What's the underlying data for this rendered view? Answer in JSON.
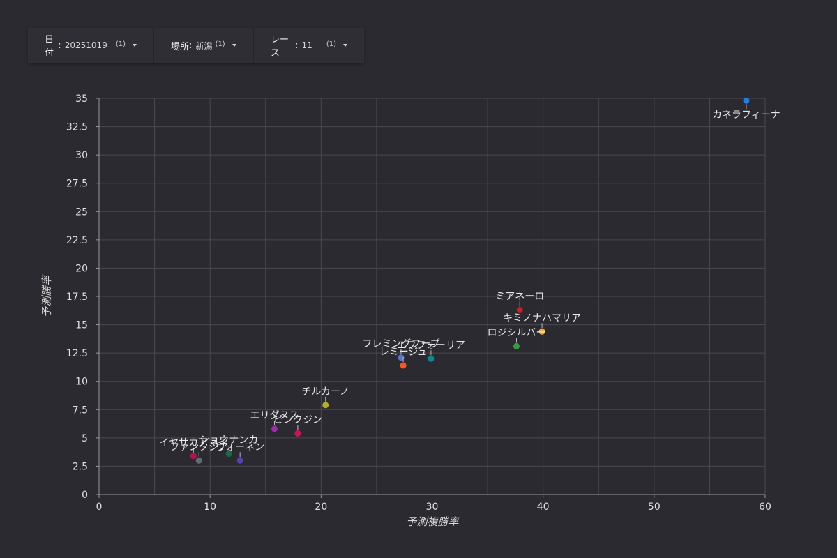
{
  "filters": [
    {
      "label": "日付",
      "value": "20251019",
      "count": "(1)"
    },
    {
      "label": "場所",
      "value": "新潟",
      "count": "(1)"
    },
    {
      "label": "レース",
      "value": "11",
      "count": "(1)"
    }
  ],
  "chart_data": {
    "type": "scatter",
    "title": "",
    "xlabel": "予測複勝率",
    "ylabel": "予測勝率",
    "xlim": [
      0,
      60
    ],
    "ylim": [
      0,
      35
    ],
    "xticks": [
      0,
      10,
      20,
      30,
      40,
      50,
      60
    ],
    "yticks": [
      0,
      2.5,
      5,
      7.5,
      10,
      12.5,
      15,
      17.5,
      20,
      22.5,
      25,
      27.5,
      30,
      32.5,
      35
    ],
    "grid": true,
    "points": [
      {
        "label": "カネラフィーナ",
        "x": 58.3,
        "y": 34.8,
        "color": "#1e7fe0",
        "label_pos": "below"
      },
      {
        "label": "ミアネーロ",
        "x": 37.9,
        "y": 16.3,
        "color": "#c92127",
        "label_pos": "above"
      },
      {
        "label": "キミノナハマリア",
        "x": 39.9,
        "y": 14.4,
        "color": "#f2a82a",
        "label_pos": "above"
      },
      {
        "label": "ロジシルバー",
        "x": 37.6,
        "y": 13.1,
        "color": "#3b9a3e",
        "label_pos": "above"
      },
      {
        "label": "フレミングフープ",
        "x": 27.2,
        "y": 12.1,
        "color": "#5c73c4",
        "label_pos": "above"
      },
      {
        "label": "エフフォーリア",
        "x": 29.9,
        "y": 12.0,
        "color": "#13858e",
        "label_pos": "above"
      },
      {
        "label": "レミージュ",
        "x": 27.4,
        "y": 11.4,
        "color": "#f2582a",
        "label_pos": "above"
      },
      {
        "label": "チルカーノ",
        "x": 20.4,
        "y": 7.9,
        "color": "#b5ad2e",
        "label_pos": "above"
      },
      {
        "label": "エリダヌス",
        "x": 15.8,
        "y": 5.8,
        "color": "#9c2ea8",
        "label_pos": "above"
      },
      {
        "label": "ピンクジン",
        "x": 17.9,
        "y": 5.4,
        "color": "#c2185b",
        "label_pos": "above"
      },
      {
        "label": "イヤサカアマイ",
        "x": 8.5,
        "y": 3.4,
        "color": "#b0134d",
        "label_pos": "above"
      },
      {
        "label": "ファンタジア",
        "x": 9.0,
        "y": 3.0,
        "color": "#5d6d74",
        "label_pos": "above"
      },
      {
        "label": "ショウナンカ",
        "x": 11.7,
        "y": 3.6,
        "color": "#1c6b45",
        "label_pos": "above"
      },
      {
        "label": "ヴォーネン",
        "x": 12.7,
        "y": 3.0,
        "color": "#5b3fb3",
        "label_pos": "above"
      }
    ]
  },
  "colors": {
    "background": "#2b2a30",
    "grid": "#4a494f",
    "axis": "#9a9a9a",
    "text": "#e6e6e6"
  }
}
